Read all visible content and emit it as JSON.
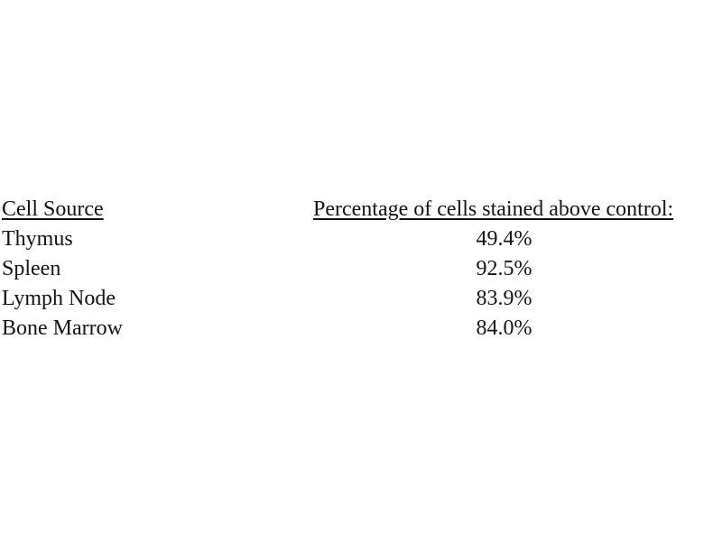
{
  "table": {
    "headers": {
      "cell_source": "Cell Source",
      "percentage": "Percentage of cells stained above control:"
    },
    "rows": [
      {
        "cell_source": "Thymus",
        "percentage": "49.4%"
      },
      {
        "cell_source": "Spleen",
        "percentage": "92.5%"
      },
      {
        "cell_source": "Lymph Node",
        "percentage": "83.9%"
      },
      {
        "cell_source": "Bone Marrow",
        "percentage": "84.0%"
      }
    ]
  },
  "colors": {
    "text": "#141414",
    "background": "#ffffff"
  }
}
